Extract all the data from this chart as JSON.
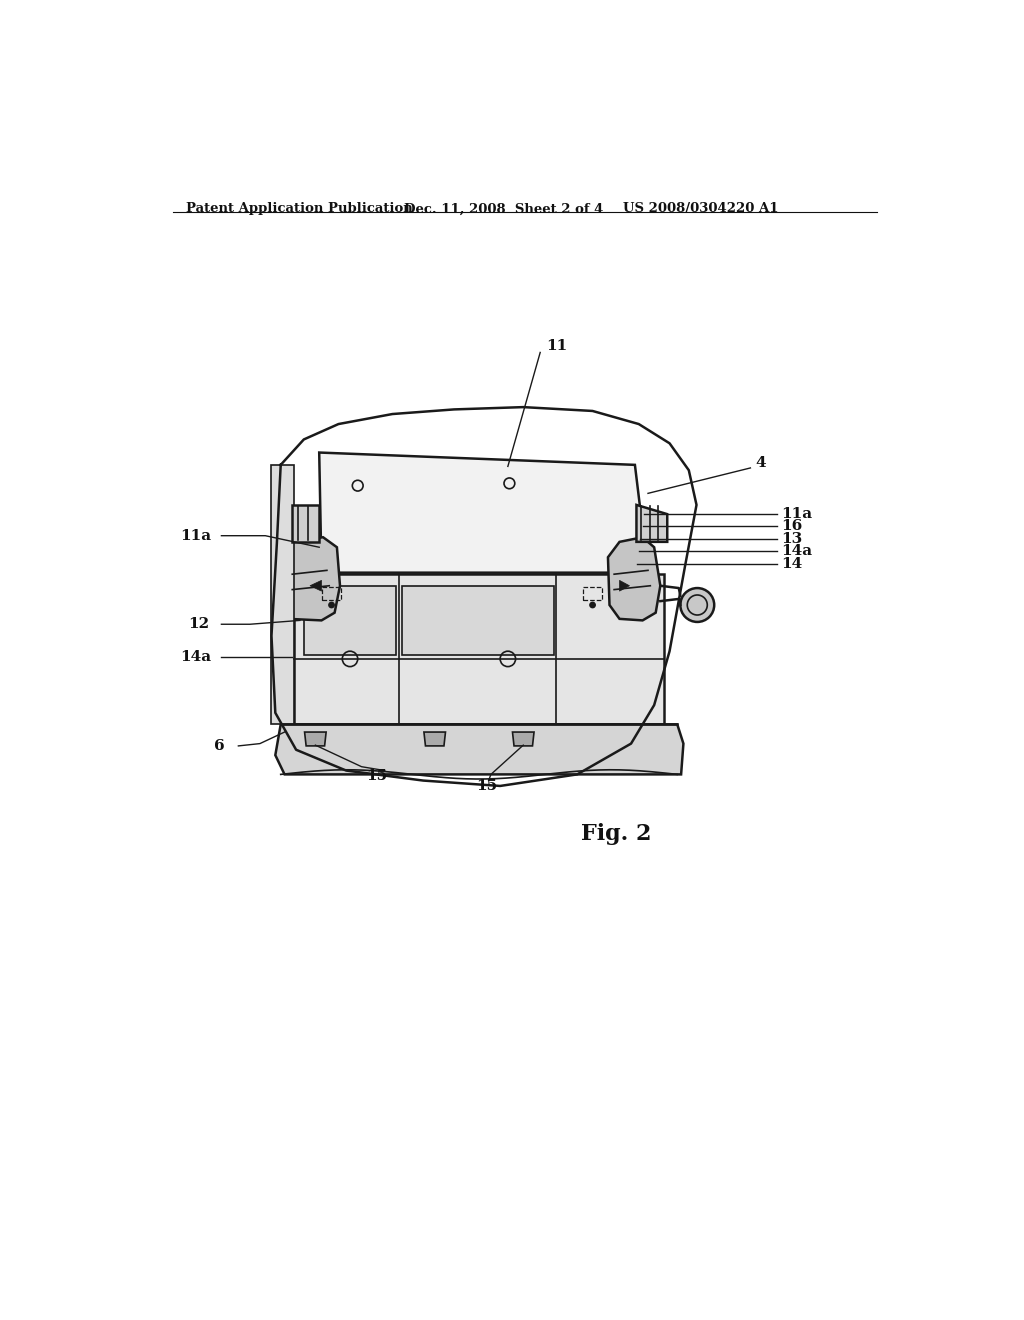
{
  "bg_color": "#ffffff",
  "header_left": "Patent Application Publication",
  "header_mid": "Dec. 11, 2008  Sheet 2 of 4",
  "header_right": "US 2008/0304220 A1",
  "figure_label": "Fig. 2",
  "line_color": "#1a1a1a",
  "lw_main": 1.8,
  "lw_thin": 1.2
}
